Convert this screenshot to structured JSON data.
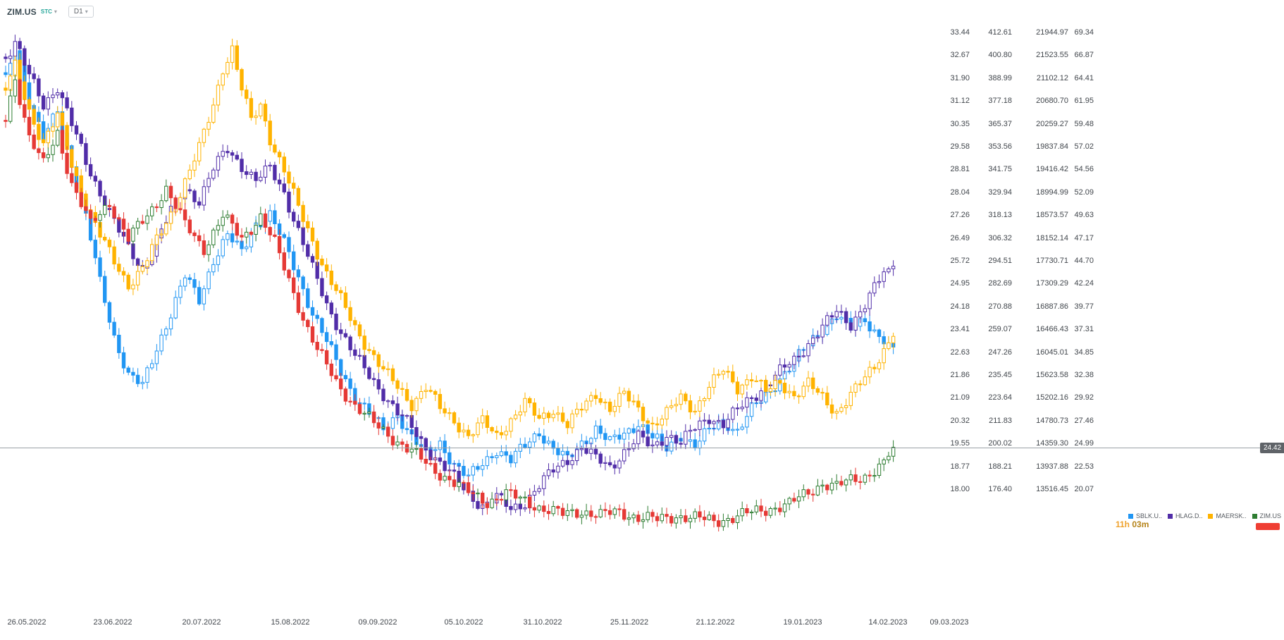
{
  "header": {
    "symbol": "ZIM.US",
    "exchange": "STC",
    "timeframe": "D1"
  },
  "countdown": {
    "hours": "11h",
    "minutes": "03m"
  },
  "price_marker": {
    "label": "24.42"
  },
  "colors": {
    "sblk": "#2196F3",
    "hlag": "#512DA8",
    "maersk": "#FFB300",
    "zim_up": "#2E7D32",
    "zim_down": "#E53935",
    "countdown_hours": "#EFA12B",
    "countdown_minutes": "#B58318",
    "price_badge_bg": "#5F6368",
    "zim_flag": "#EF3E33",
    "axis_text": "#41464C",
    "price_line": "#9AA0A6"
  },
  "legend": {
    "items": [
      {
        "label": "SBLK.U..",
        "color": "#2196F3"
      },
      {
        "label": "HLAG.D..",
        "color": "#512DA8"
      },
      {
        "label": "MAERSK..",
        "color": "#FFB300"
      },
      {
        "label": "ZIM.US",
        "color": "#2E7D32"
      }
    ]
  },
  "chart_data": {
    "type": "candlestick",
    "timeframe": "D1",
    "x_labels": [
      "26.05.2022",
      "23.06.2022",
      "20.07.2022",
      "15.08.2022",
      "09.09.2022",
      "05.10.2022",
      "31.10.2022",
      "25.11.2022",
      "21.12.2022",
      "19.01.2023",
      "14.02.2023",
      "09.03.2023"
    ],
    "scales": {
      "sblk": {
        "labels": [
          "33.44",
          "32.67",
          "31.90",
          "31.12",
          "30.35",
          "29.58",
          "28.81",
          "28.04",
          "27.26",
          "26.49",
          "25.72",
          "24.95",
          "24.18",
          "23.41",
          "22.63",
          "21.86",
          "21.09",
          "20.32",
          "19.55",
          "18.77",
          "18.00"
        ]
      },
      "hlag": {
        "labels": [
          "412.61",
          "400.80",
          "388.99",
          "377.18",
          "365.37",
          "353.56",
          "341.75",
          "329.94",
          "318.13",
          "306.32",
          "294.51",
          "282.69",
          "270.88",
          "259.07",
          "247.26",
          "235.45",
          "223.64",
          "211.83",
          "200.02",
          "188.21",
          "176.40"
        ]
      },
      "maersk": {
        "labels": [
          "21944.97",
          "21523.55",
          "21102.12",
          "20680.70",
          "20259.27",
          "19837.84",
          "19416.42",
          "18994.99",
          "18573.57",
          "18152.14",
          "17730.71",
          "17309.29",
          "16887.86",
          "16466.43",
          "16045.01",
          "15623.58",
          "15202.16",
          "14780.73",
          "14359.30",
          "13937.88",
          "13516.45"
        ]
      },
      "zim": {
        "labels": [
          "69.34",
          "66.87",
          "64.41",
          "61.95",
          "59.48",
          "57.02",
          "54.56",
          "52.09",
          "49.63",
          "47.17",
          "44.70",
          "42.24",
          "39.77",
          "37.31",
          "34.85",
          "32.38",
          "29.92",
          "27.46",
          "24.99",
          "22.53",
          "20.07"
        ]
      }
    },
    "current_price": {
      "value": 24.42,
      "scale": "zim"
    },
    "series": [
      {
        "name": "SBLK.U..",
        "scale": "sblk",
        "color": "#2196F3",
        "anchors": [
          [
            0,
            31.8
          ],
          [
            2,
            33
          ],
          [
            5,
            31.2
          ],
          [
            8,
            29.8
          ],
          [
            11,
            30.8
          ],
          [
            14,
            29
          ],
          [
            17,
            27.2
          ],
          [
            20,
            25
          ],
          [
            23,
            23.2
          ],
          [
            26,
            21.9
          ],
          [
            29,
            21.5
          ],
          [
            32,
            22.8
          ],
          [
            35,
            24
          ],
          [
            38,
            25.2
          ],
          [
            41,
            24.4
          ],
          [
            44,
            25.8
          ],
          [
            47,
            26.6
          ],
          [
            50,
            26
          ],
          [
            53,
            27
          ],
          [
            56,
            27.3
          ],
          [
            59,
            26.3
          ],
          [
            62,
            25.2
          ],
          [
            65,
            24
          ],
          [
            68,
            23
          ],
          [
            71,
            22
          ],
          [
            74,
            21.2
          ],
          [
            77,
            20.6
          ],
          [
            80,
            20
          ],
          [
            83,
            20.6
          ],
          [
            86,
            19.8
          ],
          [
            89,
            19.2
          ],
          [
            92,
            19.6
          ],
          [
            95,
            18.9
          ],
          [
            98,
            18.4
          ],
          [
            101,
            18.9
          ],
          [
            104,
            19.4
          ],
          [
            107,
            19
          ],
          [
            110,
            19.5
          ],
          [
            113,
            20
          ],
          [
            116,
            19.4
          ],
          [
            119,
            19
          ],
          [
            122,
            19.6
          ],
          [
            125,
            20.1
          ],
          [
            128,
            19.6
          ],
          [
            131,
            19.9
          ],
          [
            134,
            20.3
          ],
          [
            137,
            19.8
          ],
          [
            140,
            19.4
          ],
          [
            143,
            19.9
          ],
          [
            146,
            19.5
          ],
          [
            149,
            20
          ],
          [
            152,
            20.4
          ],
          [
            155,
            20
          ],
          [
            158,
            20.7
          ],
          [
            161,
            21.2
          ],
          [
            164,
            21.8
          ],
          [
            167,
            22.3
          ],
          [
            170,
            22.9
          ],
          [
            173,
            23.5
          ],
          [
            176,
            23.9
          ],
          [
            179,
            23.4
          ],
          [
            182,
            23.8
          ],
          [
            185,
            23.2
          ],
          [
            188,
            22.8
          ]
        ]
      },
      {
        "name": "HLAG.D..",
        "scale": "hlag",
        "color": "#512DA8",
        "anchors": [
          [
            0,
            400
          ],
          [
            2,
            408
          ],
          [
            5,
            390
          ],
          [
            8,
            375
          ],
          [
            11,
            385
          ],
          [
            14,
            365
          ],
          [
            17,
            345
          ],
          [
            20,
            330
          ],
          [
            23,
            315
          ],
          [
            26,
            300
          ],
          [
            29,
            290
          ],
          [
            32,
            305
          ],
          [
            35,
            320
          ],
          [
            38,
            332
          ],
          [
            41,
            326
          ],
          [
            44,
            342
          ],
          [
            47,
            352
          ],
          [
            50,
            344
          ],
          [
            53,
            336
          ],
          [
            56,
            342
          ],
          [
            59,
            330
          ],
          [
            62,
            310
          ],
          [
            65,
            290
          ],
          [
            68,
            272
          ],
          [
            71,
            258
          ],
          [
            74,
            245
          ],
          [
            77,
            235
          ],
          [
            80,
            226
          ],
          [
            83,
            216
          ],
          [
            86,
            208
          ],
          [
            89,
            198
          ],
          [
            92,
            190
          ],
          [
            95,
            182
          ],
          [
            98,
            174
          ],
          [
            101,
            168
          ],
          [
            104,
            172
          ],
          [
            107,
            166
          ],
          [
            110,
            170
          ],
          [
            113,
            178
          ],
          [
            116,
            186
          ],
          [
            119,
            192
          ],
          [
            122,
            198
          ],
          [
            125,
            192
          ],
          [
            128,
            188
          ],
          [
            131,
            196
          ],
          [
            134,
            203
          ],
          [
            137,
            198
          ],
          [
            140,
            205
          ],
          [
            143,
            200
          ],
          [
            146,
            208
          ],
          [
            149,
            214
          ],
          [
            152,
            210
          ],
          [
            155,
            217
          ],
          [
            158,
            224
          ],
          [
            161,
            230
          ],
          [
            164,
            237
          ],
          [
            167,
            243
          ],
          [
            170,
            252
          ],
          [
            173,
            260
          ],
          [
            176,
            268
          ],
          [
            179,
            262
          ],
          [
            182,
            272
          ],
          [
            184,
            280
          ],
          [
            186,
            288
          ],
          [
            188,
            292
          ]
        ]
      },
      {
        "name": "MAERSK..",
        "scale": "maersk",
        "color": "#FFB300",
        "anchors": [
          [
            0,
            20900
          ],
          [
            2,
            21300
          ],
          [
            5,
            20500
          ],
          [
            8,
            19900
          ],
          [
            11,
            20400
          ],
          [
            14,
            19500
          ],
          [
            17,
            18800
          ],
          [
            20,
            18200
          ],
          [
            23,
            17700
          ],
          [
            26,
            17300
          ],
          [
            29,
            17600
          ],
          [
            32,
            18100
          ],
          [
            35,
            18600
          ],
          [
            38,
            19200
          ],
          [
            41,
            19800
          ],
          [
            44,
            20600
          ],
          [
            46,
            21300
          ],
          [
            48,
            21650
          ],
          [
            50,
            20900
          ],
          [
            52,
            20300
          ],
          [
            54,
            20600
          ],
          [
            56,
            20000
          ],
          [
            59,
            19400
          ],
          [
            62,
            18700
          ],
          [
            65,
            18100
          ],
          [
            68,
            17500
          ],
          [
            71,
            17000
          ],
          [
            74,
            16500
          ],
          [
            77,
            16100
          ],
          [
            80,
            15700
          ],
          [
            83,
            15400
          ],
          [
            86,
            15100
          ],
          [
            89,
            15400
          ],
          [
            92,
            15000
          ],
          [
            95,
            14800
          ],
          [
            98,
            14500
          ],
          [
            101,
            14750
          ],
          [
            104,
            14500
          ],
          [
            107,
            14800
          ],
          [
            110,
            15100
          ],
          [
            113,
            14800
          ],
          [
            116,
            15000
          ],
          [
            119,
            14700
          ],
          [
            122,
            15000
          ],
          [
            125,
            15300
          ],
          [
            128,
            15000
          ],
          [
            131,
            15250
          ],
          [
            134,
            15000
          ],
          [
            137,
            14700
          ],
          [
            140,
            14900
          ],
          [
            143,
            15200
          ],
          [
            146,
            15000
          ],
          [
            149,
            15400
          ],
          [
            152,
            15700
          ],
          [
            155,
            15400
          ],
          [
            158,
            15600
          ],
          [
            161,
            15300
          ],
          [
            164,
            15500
          ],
          [
            167,
            15250
          ],
          [
            170,
            15450
          ],
          [
            173,
            15200
          ],
          [
            176,
            14950
          ],
          [
            179,
            15250
          ],
          [
            182,
            15550
          ],
          [
            184,
            15800
          ],
          [
            186,
            16100
          ],
          [
            188,
            16350
          ]
        ]
      },
      {
        "name": "ZIM.US",
        "scale": "zim",
        "up_color": "#2E7D32",
        "down_color": "#E53935",
        "anchors": [
          [
            0,
            60
          ],
          [
            2,
            64.5
          ],
          [
            5,
            58
          ],
          [
            8,
            55
          ],
          [
            11,
            58.5
          ],
          [
            14,
            53
          ],
          [
            18,
            48.5
          ],
          [
            22,
            51
          ],
          [
            26,
            47
          ],
          [
            30,
            49.5
          ],
          [
            34,
            52.5
          ],
          [
            38,
            48.5
          ],
          [
            42,
            46
          ],
          [
            46,
            49.5
          ],
          [
            50,
            47
          ],
          [
            54,
            49.5
          ],
          [
            57,
            46.5
          ],
          [
            60,
            42.5
          ],
          [
            63,
            38.5
          ],
          [
            66,
            35
          ],
          [
            70,
            31.5
          ],
          [
            74,
            29
          ],
          [
            78,
            27
          ],
          [
            82,
            25.5
          ],
          [
            86,
            24
          ],
          [
            90,
            22.3
          ],
          [
            94,
            21
          ],
          [
            98,
            19.6
          ],
          [
            102,
            18.6
          ],
          [
            106,
            19.4
          ],
          [
            110,
            18.7
          ],
          [
            114,
            17.8
          ],
          [
            118,
            17.2
          ],
          [
            122,
            17.6
          ],
          [
            126,
            17.1
          ],
          [
            130,
            17.5
          ],
          [
            134,
            16.9
          ],
          [
            138,
            16.6
          ],
          [
            142,
            17.1
          ],
          [
            146,
            16.8
          ],
          [
            150,
            16.5
          ],
          [
            154,
            16.9
          ],
          [
            158,
            17.4
          ],
          [
            162,
            17.9
          ],
          [
            166,
            18.3
          ],
          [
            170,
            19.6
          ],
          [
            173,
            20.6
          ],
          [
            176,
            20.2
          ],
          [
            179,
            20.9
          ],
          [
            182,
            21.4
          ],
          [
            184,
            22
          ],
          [
            186,
            22.6
          ],
          [
            188,
            24.42
          ]
        ]
      }
    ]
  }
}
